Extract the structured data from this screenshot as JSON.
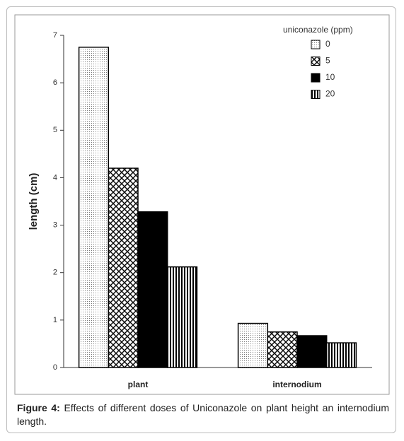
{
  "chart_data": {
    "type": "bar",
    "y_label": "length (cm)",
    "legend_title": "uniconazole (ppm)",
    "categories": [
      "plant",
      "internodium"
    ],
    "series": [
      {
        "name": "0",
        "color": "#ffffff",
        "pattern": "dots",
        "values": [
          6.75,
          0.93
        ]
      },
      {
        "name": "5",
        "color": "#ffffff",
        "pattern": "crosshatch",
        "values": [
          4.2,
          0.75
        ]
      },
      {
        "name": "10",
        "color": "#000000",
        "pattern": "solid",
        "values": [
          3.28,
          0.67
        ]
      },
      {
        "name": "20",
        "color": "#ffffff",
        "pattern": "vstripes",
        "values": [
          2.12,
          0.52
        ]
      }
    ],
    "ylim": [
      0,
      7
    ],
    "yticks": [
      0,
      1,
      2,
      3,
      4,
      5,
      6,
      7
    ],
    "legend": "upper right"
  },
  "caption": {
    "label": "Figure 4:",
    "text": "Effects of different doses of Uniconazole on plant height an internodium length."
  }
}
